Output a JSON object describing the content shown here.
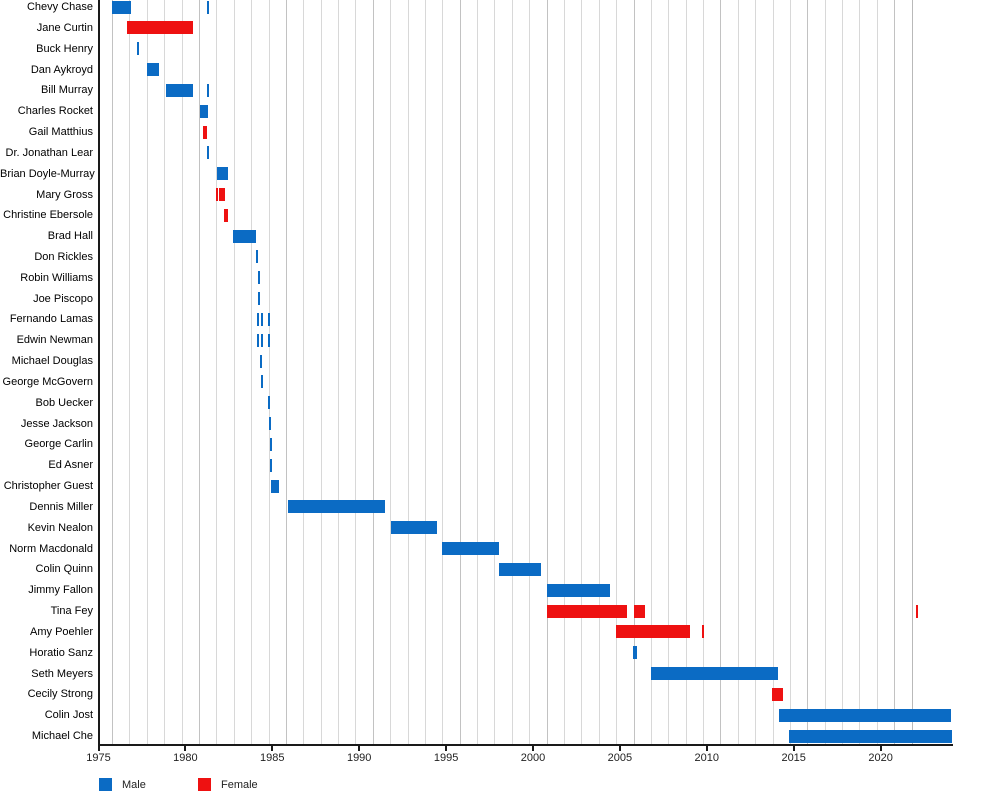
{
  "chart_data": {
    "type": "gantt",
    "x_axis": {
      "tick_years": [
        1975,
        1980,
        1985,
        1990,
        1995,
        2000,
        2005,
        2010,
        2015,
        2020
      ],
      "start_year": 1975,
      "end_year": 2024.11,
      "gridlines_start_year": 1975.78,
      "gridlines_end_year": 2021.78,
      "gridline_interval_years": 1
    },
    "legend": [
      {
        "label": "Male",
        "color": "#0b6bc4"
      },
      {
        "label": "Female",
        "color": "#ee1111"
      }
    ],
    "people": [
      {
        "name": "Chevy Chase",
        "gender": "male",
        "segments": [
          [
            1975.76,
            1976.85
          ],
          [
            1981.26,
            1981.38
          ]
        ]
      },
      {
        "name": "Jane Curtin",
        "gender": "female",
        "segments": [
          [
            1976.62,
            1976.72
          ],
          [
            1976.78,
            1980.44
          ]
        ]
      },
      {
        "name": "Buck Henry",
        "gender": "male",
        "segments": [
          [
            1977.24,
            1977.36
          ]
        ]
      },
      {
        "name": "Dan Aykroyd",
        "gender": "male",
        "segments": [
          [
            1977.79,
            1978.48
          ]
        ]
      },
      {
        "name": "Bill Murray",
        "gender": "male",
        "segments": [
          [
            1978.87,
            1980.44
          ],
          [
            1981.23,
            1981.34
          ]
        ]
      },
      {
        "name": "Charles Rocket",
        "gender": "male",
        "segments": [
          [
            1980.84,
            1981.3
          ]
        ]
      },
      {
        "name": "Gail Matthius",
        "gender": "female",
        "segments": [
          [
            1981.0,
            1981.26
          ]
        ]
      },
      {
        "name": "Dr. Jonathan Lear",
        "gender": "male",
        "segments": [
          [
            1981.23,
            1981.34
          ]
        ]
      },
      {
        "name": "Brian Doyle-Murray",
        "gender": "male",
        "segments": [
          [
            1981.8,
            1982.47
          ]
        ]
      },
      {
        "name": "Mary Gross",
        "gender": "female",
        "segments": [
          [
            1981.76,
            1981.86
          ],
          [
            1981.92,
            1982.01
          ],
          [
            1982.07,
            1982.28
          ]
        ]
      },
      {
        "name": "Christine Ebersole",
        "gender": "female",
        "segments": [
          [
            1982.24,
            1982.43
          ]
        ]
      },
      {
        "name": "Brad Hall",
        "gender": "male",
        "segments": [
          [
            1982.76,
            1984.04
          ]
        ]
      },
      {
        "name": "Don Rickles",
        "gender": "male",
        "segments": [
          [
            1984.06,
            1984.18
          ]
        ]
      },
      {
        "name": "Robin Williams",
        "gender": "male",
        "segments": [
          [
            1984.16,
            1984.27
          ]
        ]
      },
      {
        "name": "Joe Piscopo",
        "gender": "male",
        "segments": [
          [
            1984.16,
            1984.27
          ]
        ]
      },
      {
        "name": "Fernando Lamas",
        "gender": "male",
        "segments": [
          [
            1984.14,
            1984.25
          ],
          [
            1984.35,
            1984.46
          ],
          [
            1984.73,
            1984.85
          ]
        ]
      },
      {
        "name": "Edwin Newman",
        "gender": "male",
        "segments": [
          [
            1984.09,
            1984.21
          ],
          [
            1984.32,
            1984.44
          ],
          [
            1984.75,
            1984.87
          ]
        ]
      },
      {
        "name": "Michael Douglas",
        "gender": "male",
        "segments": [
          [
            1984.28,
            1984.39
          ]
        ]
      },
      {
        "name": "George McGovern",
        "gender": "male",
        "segments": [
          [
            1984.37,
            1984.48
          ]
        ]
      },
      {
        "name": "Bob Uecker",
        "gender": "male",
        "segments": [
          [
            1984.77,
            1984.89
          ]
        ]
      },
      {
        "name": "Jesse Jackson",
        "gender": "male",
        "segments": [
          [
            1984.83,
            1984.94
          ]
        ]
      },
      {
        "name": "George Carlin",
        "gender": "male",
        "segments": [
          [
            1984.89,
            1985.0
          ]
        ]
      },
      {
        "name": "Ed Asner",
        "gender": "male",
        "segments": [
          [
            1984.89,
            1985.0
          ]
        ]
      },
      {
        "name": "Christopher Guest",
        "gender": "male",
        "segments": [
          [
            1984.94,
            1985.37
          ]
        ]
      },
      {
        "name": "Dennis Miller",
        "gender": "male",
        "segments": [
          [
            1985.92,
            1991.49
          ]
        ]
      },
      {
        "name": "Kevin Nealon",
        "gender": "male",
        "segments": [
          [
            1991.83,
            1994.46
          ]
        ]
      },
      {
        "name": "Norm Macdonald",
        "gender": "male",
        "segments": [
          [
            1994.75,
            1998.05
          ]
        ]
      },
      {
        "name": "Colin Quinn",
        "gender": "male",
        "segments": [
          [
            1998.05,
            2000.46
          ]
        ]
      },
      {
        "name": "Jimmy Fallon",
        "gender": "male",
        "segments": [
          [
            2000.79,
            2004.43
          ]
        ]
      },
      {
        "name": "Tina Fey",
        "gender": "female",
        "segments": [
          [
            2000.79,
            2005.43
          ],
          [
            2005.83,
            2006.45
          ],
          [
            2022.01,
            2022.13
          ]
        ]
      },
      {
        "name": "Amy Poehler",
        "gender": "female",
        "segments": [
          [
            2004.77,
            2009.03
          ],
          [
            2009.71,
            2009.82
          ]
        ]
      },
      {
        "name": "Horatio Sanz",
        "gender": "male",
        "segments": [
          [
            2005.74,
            2005.97
          ]
        ]
      },
      {
        "name": "Seth Meyers",
        "gender": "male",
        "segments": [
          [
            2006.81,
            2014.12
          ]
        ]
      },
      {
        "name": "Cecily Strong",
        "gender": "female",
        "segments": [
          [
            2013.76,
            2014.41
          ]
        ]
      },
      {
        "name": "Colin Jost",
        "gender": "male",
        "segments": [
          [
            2014.16,
            2024.08
          ]
        ]
      },
      {
        "name": "Michael Che",
        "gender": "male",
        "segments": [
          [
            2014.73,
            2024.08
          ]
        ]
      }
    ]
  }
}
